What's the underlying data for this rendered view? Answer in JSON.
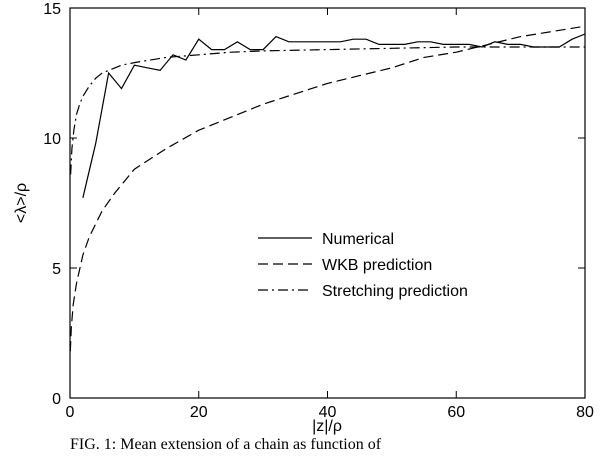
{
  "caption": "FIG. 1: Mean extension of a chain as function of",
  "chart_data": {
    "type": "line",
    "title": "",
    "xlabel": "|z|/ρ",
    "ylabel": "<λ>/ρ",
    "xlim": [
      0,
      80
    ],
    "ylim": [
      0,
      15
    ],
    "xticks": [
      0,
      20,
      40,
      60,
      80
    ],
    "yticks": [
      0,
      5,
      10,
      15
    ],
    "grid": false,
    "legend_position": "center-right",
    "series": [
      {
        "name": "Numerical",
        "style": "solid",
        "x": [
          2,
          4,
          6,
          8,
          10,
          12,
          14,
          16,
          18,
          20,
          22,
          24,
          26,
          28,
          30,
          32,
          34,
          36,
          38,
          40,
          42,
          44,
          46,
          48,
          50,
          52,
          54,
          56,
          58,
          60,
          62,
          64,
          66,
          68,
          70,
          72,
          74,
          76,
          78,
          80
        ],
        "y": [
          7.7,
          9.8,
          12.5,
          11.9,
          12.8,
          12.7,
          12.6,
          13.2,
          13.0,
          13.8,
          13.4,
          13.4,
          13.7,
          13.4,
          13.4,
          13.9,
          13.7,
          13.7,
          13.7,
          13.7,
          13.7,
          13.8,
          13.8,
          13.6,
          13.6,
          13.6,
          13.7,
          13.7,
          13.6,
          13.6,
          13.6,
          13.5,
          13.7,
          13.6,
          13.6,
          13.5,
          13.5,
          13.5,
          13.8,
          14.0
        ]
      },
      {
        "name": "WKB prediction",
        "style": "dashed",
        "x": [
          0.05,
          0.2,
          0.5,
          1,
          2,
          3,
          5,
          7,
          10,
          15,
          20,
          25,
          30,
          35,
          40,
          45,
          50,
          55,
          60,
          65,
          70,
          75,
          80
        ],
        "y": [
          1.8,
          2.7,
          3.6,
          4.4,
          5.5,
          6.2,
          7.2,
          7.9,
          8.8,
          9.6,
          10.3,
          10.8,
          11.3,
          11.7,
          12.1,
          12.4,
          12.7,
          13.1,
          13.3,
          13.6,
          13.9,
          14.1,
          14.3
        ]
      },
      {
        "name": "Stretching prediction",
        "style": "dash-dot",
        "x": [
          0.1,
          0.3,
          0.6,
          1,
          1.5,
          2,
          3,
          4,
          5,
          6,
          8,
          10,
          15,
          20,
          25,
          30,
          40,
          50,
          60,
          70,
          80
        ],
        "y": [
          8.6,
          9.6,
          10.3,
          10.9,
          11.3,
          11.6,
          12.0,
          12.3,
          12.5,
          12.6,
          12.8,
          12.9,
          13.1,
          13.2,
          13.3,
          13.35,
          13.4,
          13.45,
          13.5,
          13.5,
          13.5
        ]
      }
    ]
  }
}
